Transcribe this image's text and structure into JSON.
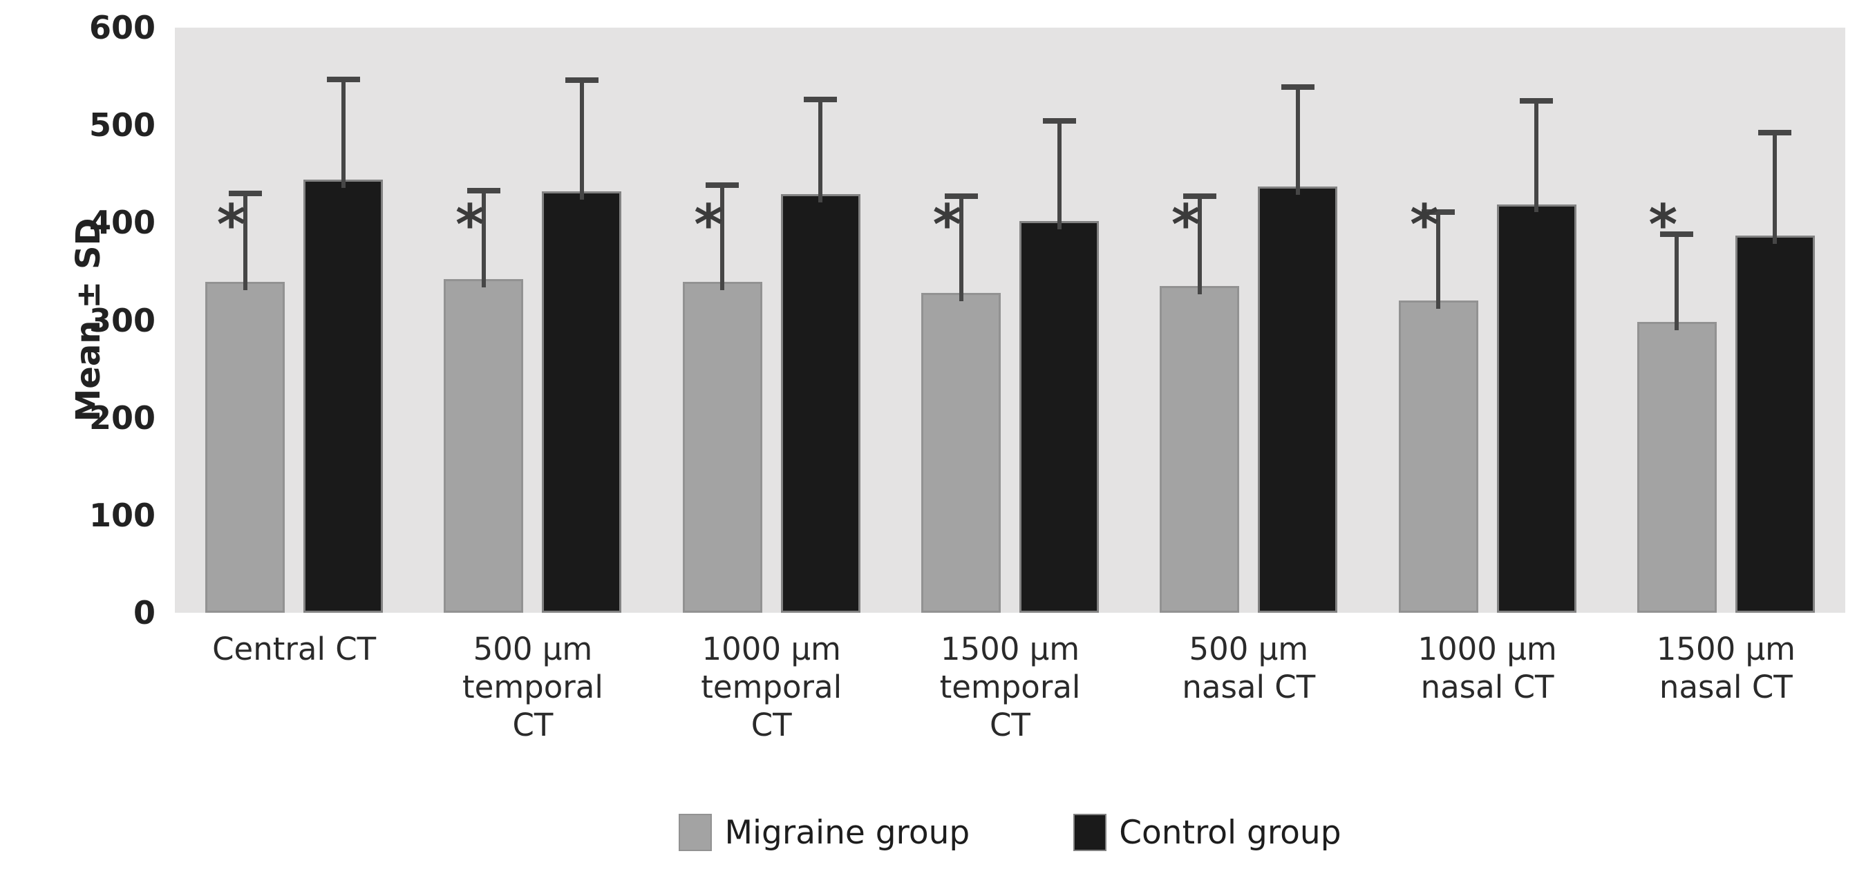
{
  "page": {
    "background": "#ffffff"
  },
  "chart_data": {
    "type": "bar",
    "title": "",
    "xlabel": "",
    "ylabel": "Mean ± SD",
    "ylim": [
      0,
      600
    ],
    "yticks": [
      0,
      100,
      200,
      300,
      400,
      500,
      600
    ],
    "grid": false,
    "plot_background": "#e4e3e3",
    "error_bar_color": "#464646",
    "significance_marker": "*",
    "significance_marker_color": "#3b3b3b",
    "significance_level_y": 403,
    "legend_position": "bottom-center",
    "categories": [
      "Central CT",
      "500 μm temporal CT",
      "1000 μm temporal CT",
      "1500 μm temporal CT",
      "500 μm nasal CT",
      "1000 μm nasal CT",
      "1500 μm nasal CT"
    ],
    "category_lines": [
      [
        "Central CT"
      ],
      [
        "500 μm",
        "temporal",
        "CT"
      ],
      [
        "1000 μm",
        "temporal",
        "CT"
      ],
      [
        "1500 μm",
        "temporal",
        "CT"
      ],
      [
        "500 μm",
        "nasal CT"
      ],
      [
        "1000 μm",
        "nasal CT"
      ],
      [
        "1500 μm",
        "nasal CT"
      ]
    ],
    "series": [
      {
        "name": "Migraine group",
        "color": "#a3a3a3",
        "border_color": "#929292",
        "values": [
          339,
          342,
          339,
          328,
          335,
          320,
          298
        ],
        "sd": [
          94,
          94,
          102,
          102,
          95,
          94,
          93
        ],
        "significant": [
          true,
          true,
          true,
          true,
          true,
          true,
          true
        ]
      },
      {
        "name": "Control group",
        "color": "#1a1a1a",
        "border_color": "#828282",
        "values": [
          444,
          432,
          429,
          402,
          437,
          419,
          387
        ],
        "sd": [
          106,
          117,
          100,
          105,
          105,
          109,
          108
        ],
        "significant": [
          false,
          false,
          false,
          false,
          false,
          false,
          false
        ]
      }
    ]
  }
}
